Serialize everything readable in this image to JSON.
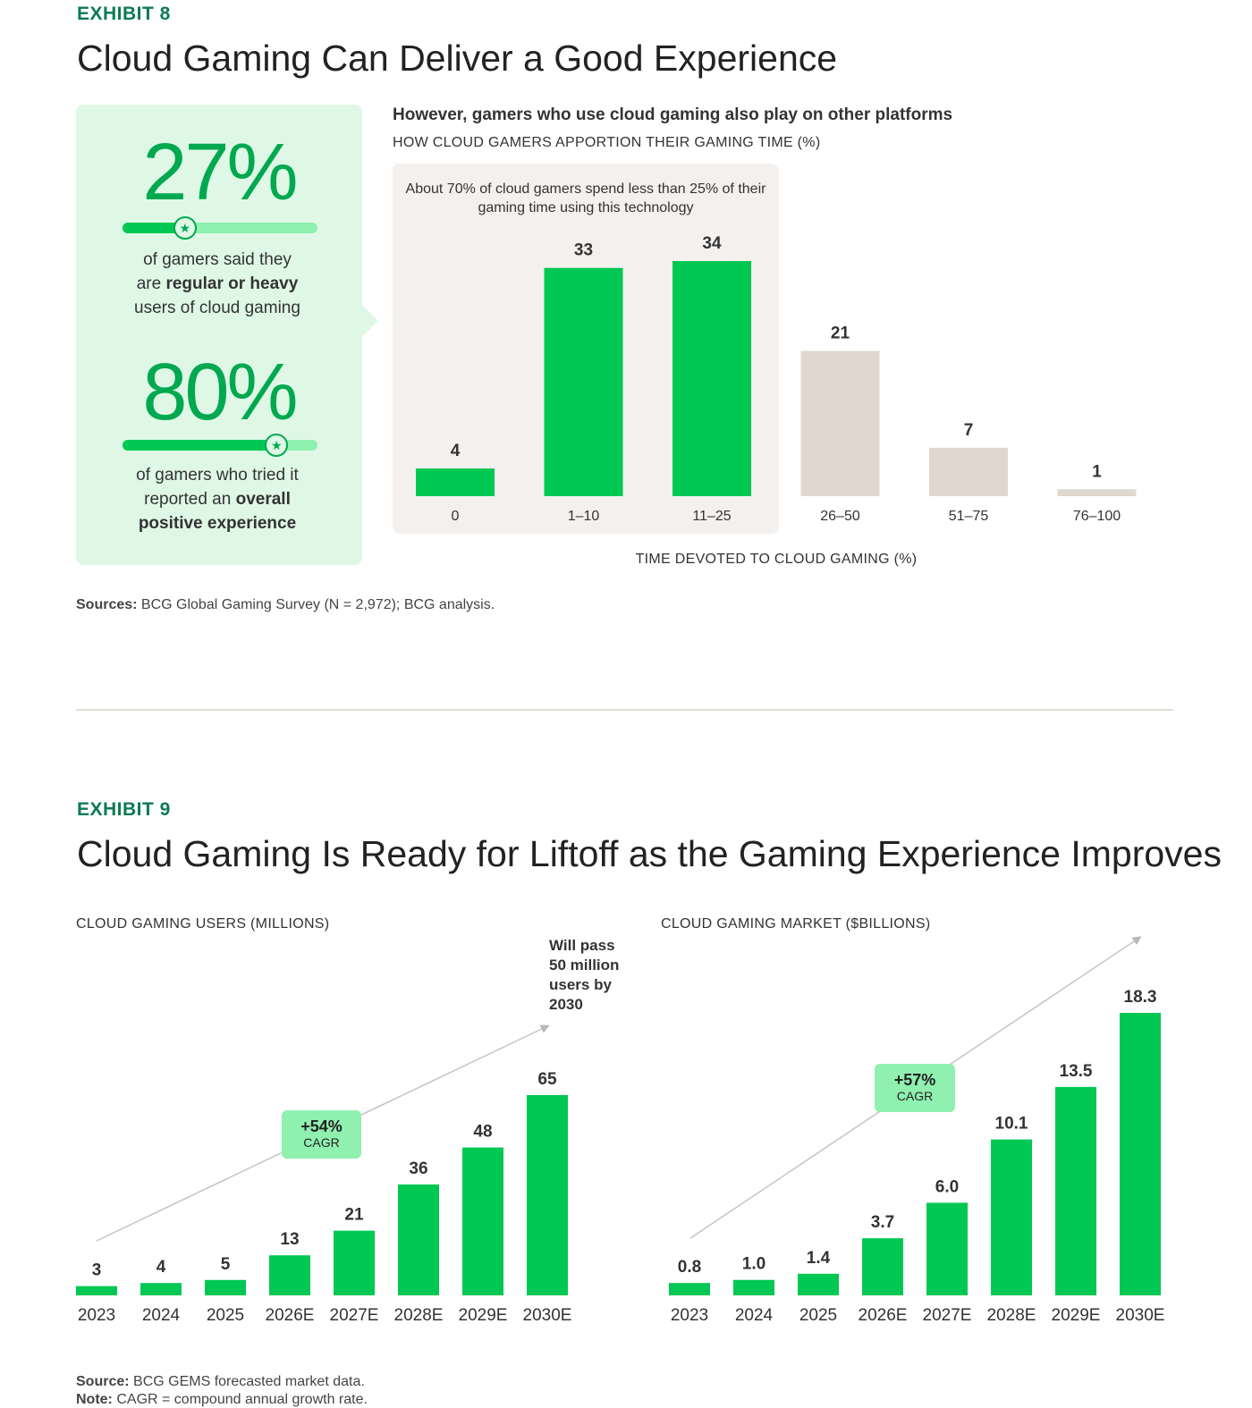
{
  "exhibit8": {
    "label": "EXHIBIT 8",
    "title": "Cloud Gaming Can Deliver a Good Experience",
    "stat1": {
      "value": "27%",
      "text_a": "of gamers said they",
      "text_b_prefix": "are ",
      "text_b_bold": "regular or heavy",
      "text_c": "users of cloud gaming",
      "fill_fraction": 0.32
    },
    "stat2": {
      "value": "80%",
      "text_a": "of gamers who tried it",
      "text_b_prefix": "reported an ",
      "text_b_bold": "overall",
      "text_c_bold": "positive experience",
      "fill_fraction": 0.79
    },
    "subtitle": "However, gamers who use cloud gaming also play on other platforms",
    "chart_label": "HOW CLOUD GAMERS APPORTION THEIR GAMING TIME (%)",
    "note": "About 70% of cloud gamers spend less than 25% of their gaming time using this technology",
    "xlabel": "TIME DEVOTED TO CLOUD GAMING (%)",
    "source_label": "Sources:",
    "source_text": " BCG Global Gaming Survey (N = 2,972); BCG analysis."
  },
  "exhibit9": {
    "label": "EXHIBIT 9",
    "title": "Cloud Gaming Is Ready for Liftoff as the Gaming Experience Improves",
    "users_label": "CLOUD GAMING USERS (MILLIONS)",
    "market_label": "CLOUD GAMING MARKET ($BILLIONS)",
    "callout": [
      "Will pass",
      "50 million",
      "users by",
      "2030"
    ],
    "users_cagr": "+54%",
    "market_cagr": "+57%",
    "cagr_text": "CAGR",
    "source_label": "Source:",
    "source_text": " BCG GEMS forecasted market data.",
    "note_label": "Note:",
    "note_text": " CAGR = compound annual growth rate."
  },
  "colors": {
    "green": "#00c853",
    "beige": "#e0d8cf",
    "accent": "#0b7b52",
    "light_green": "#8ff0b0"
  },
  "chart_data": [
    {
      "type": "bar",
      "title": "HOW CLOUD GAMERS APPORTION THEIR GAMING TIME (%)",
      "xlabel": "TIME DEVOTED TO CLOUD GAMING (%)",
      "categories": [
        "0",
        "1–10",
        "11–25",
        "26–50",
        "51–75",
        "76–100"
      ],
      "values": [
        4,
        33,
        34,
        21,
        7,
        1
      ],
      "highlighted": [
        true,
        true,
        true,
        false,
        false,
        false
      ],
      "ylim": [
        0,
        34
      ]
    },
    {
      "type": "bar",
      "title": "CLOUD GAMING USERS (MILLIONS)",
      "categories": [
        "2023",
        "2024",
        "2025",
        "2026E",
        "2027E",
        "2028E",
        "2029E",
        "2030E"
      ],
      "values": [
        3,
        4,
        5,
        13,
        21,
        36,
        48,
        65
      ],
      "labels": [
        "3",
        "4",
        "5",
        "13",
        "21",
        "36",
        "48",
        "65"
      ],
      "ylim": [
        0,
        65
      ]
    },
    {
      "type": "bar",
      "title": "CLOUD GAMING MARKET ($BILLIONS)",
      "categories": [
        "2023",
        "2024",
        "2025",
        "2026E",
        "2027E",
        "2028E",
        "2029E",
        "2030E"
      ],
      "values": [
        0.8,
        1.0,
        1.4,
        3.7,
        6.0,
        10.1,
        13.5,
        18.3
      ],
      "labels": [
        "0.8",
        "1.0",
        "1.4",
        "3.7",
        "6.0",
        "10.1",
        "13.5",
        "18.3"
      ],
      "ylim": [
        0,
        18.3
      ]
    }
  ]
}
